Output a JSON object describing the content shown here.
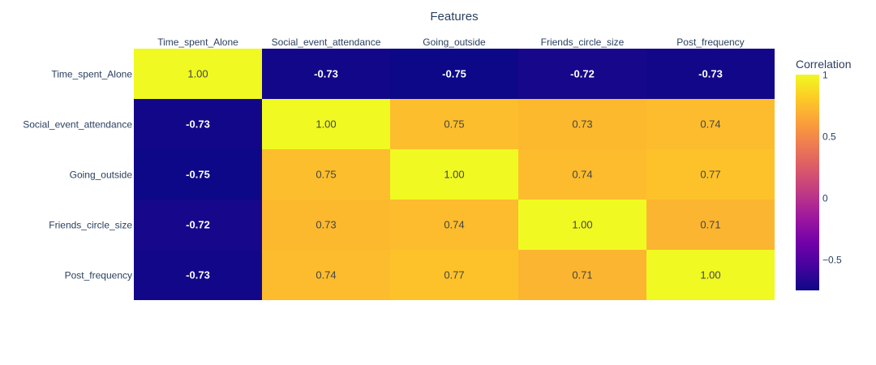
{
  "chart_data": {
    "type": "heatmap",
    "title": "Features",
    "x_labels": [
      "Time_spent_Alone",
      "Social_event_attendance",
      "Going_outside",
      "Friends_circle_size",
      "Post_frequency"
    ],
    "y_labels": [
      "Time_spent_Alone",
      "Social_event_attendance",
      "Going_outside",
      "Friends_circle_size",
      "Post_frequency"
    ],
    "values": [
      [
        1.0,
        -0.73,
        -0.75,
        -0.72,
        -0.73
      ],
      [
        -0.73,
        1.0,
        0.75,
        0.73,
        0.74
      ],
      [
        -0.75,
        0.75,
        1.0,
        0.74,
        0.77
      ],
      [
        -0.72,
        0.73,
        0.74,
        1.0,
        0.71
      ],
      [
        -0.73,
        0.74,
        0.77,
        0.71,
        1.0
      ]
    ],
    "zmin": -0.75,
    "zmax": 1.0,
    "colorscale": "plasma",
    "colorbar": {
      "title": "Correlation",
      "tick_values": [
        1,
        0.5,
        0,
        -0.5
      ],
      "tick_labels": [
        "1",
        "0.5",
        "0",
        "−0.5"
      ]
    }
  }
}
